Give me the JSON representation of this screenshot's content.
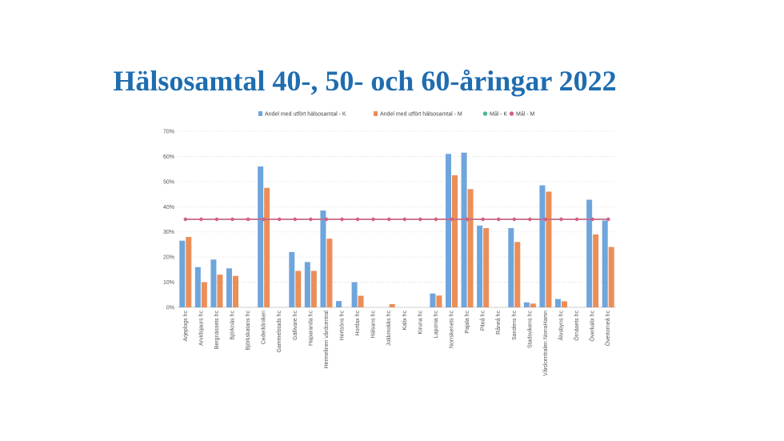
{
  "title": "Hälsosamtal 40-, 50- och 60-åringar 2022",
  "colors": {
    "k": "#6fa5dc",
    "m": "#ec8e58",
    "mal_k": "#4cb88a",
    "mal_m": "#d95d84",
    "grid": "#e3e3e3"
  },
  "chart_data": {
    "type": "bar",
    "title": "Hälsosamtal 40-, 50- och 60-åringar 2022",
    "xlabel": "",
    "ylabel": "",
    "ylim": [
      0,
      70
    ],
    "yticks": [
      "0%",
      "10%",
      "20%",
      "30%",
      "40%",
      "50%",
      "60%",
      "70%"
    ],
    "grid": true,
    "legend_position": "top",
    "categories": [
      "Arjeplogs hc",
      "Arvidsjaurs hc",
      "Bergnässets hc",
      "Björknäs hc",
      "Björkskatans hc",
      "Cederkliniken",
      "Gammelstads hc",
      "Gällivare hc",
      "Haparanda hc",
      "Hermelinen vårdcentral",
      "Hertsöns hc",
      "Hortlax hc",
      "Hälsans hc",
      "Jokkmokks hc",
      "Kalix hc",
      "Kiruna hc",
      "Laponia hc",
      "Norrskenets hc",
      "Pajala hc",
      "Piteå hc",
      "Råneå hc",
      "Sandens hc",
      "Stadsvikens hc",
      "Vårdcentralen NorraHamn",
      "Älvsbyns hc",
      "Örnäsets hc",
      "Överkalix hc",
      "Övertorneå hc"
    ],
    "series": [
      {
        "name": "Andel med utfört hälsosamtal - K",
        "kind": "bar",
        "values": [
          26.5,
          16,
          19,
          15.5,
          0,
          56,
          0,
          22,
          18,
          38.5,
          2.5,
          10,
          0,
          0,
          0,
          0,
          5.5,
          61,
          61.5,
          32.5,
          0,
          31.5,
          2,
          48.5,
          3.3,
          0,
          42.8,
          34.5
        ]
      },
      {
        "name": "Andel med utfört hälsosamtal - M",
        "kind": "bar",
        "values": [
          28,
          10,
          13,
          12.5,
          0,
          47.5,
          0,
          14.5,
          14.5,
          27.3,
          0,
          4.6,
          0,
          1.3,
          0,
          0,
          4.7,
          52.5,
          47,
          31.5,
          0,
          26,
          1.5,
          46,
          2.4,
          0,
          29,
          24
        ]
      },
      {
        "name": "Mål - K",
        "kind": "line",
        "values": [
          35,
          35,
          35,
          35,
          35,
          35,
          35,
          35,
          35,
          35,
          35,
          35,
          35,
          35,
          35,
          35,
          35,
          35,
          35,
          35,
          35,
          35,
          35,
          35,
          35,
          35,
          35,
          35
        ]
      },
      {
        "name": "Mål - M",
        "kind": "line",
        "values": [
          35,
          35,
          35,
          35,
          35,
          35,
          35,
          35,
          35,
          35,
          35,
          35,
          35,
          35,
          35,
          35,
          35,
          35,
          35,
          35,
          35,
          35,
          35,
          35,
          35,
          35,
          35,
          35
        ]
      }
    ]
  }
}
